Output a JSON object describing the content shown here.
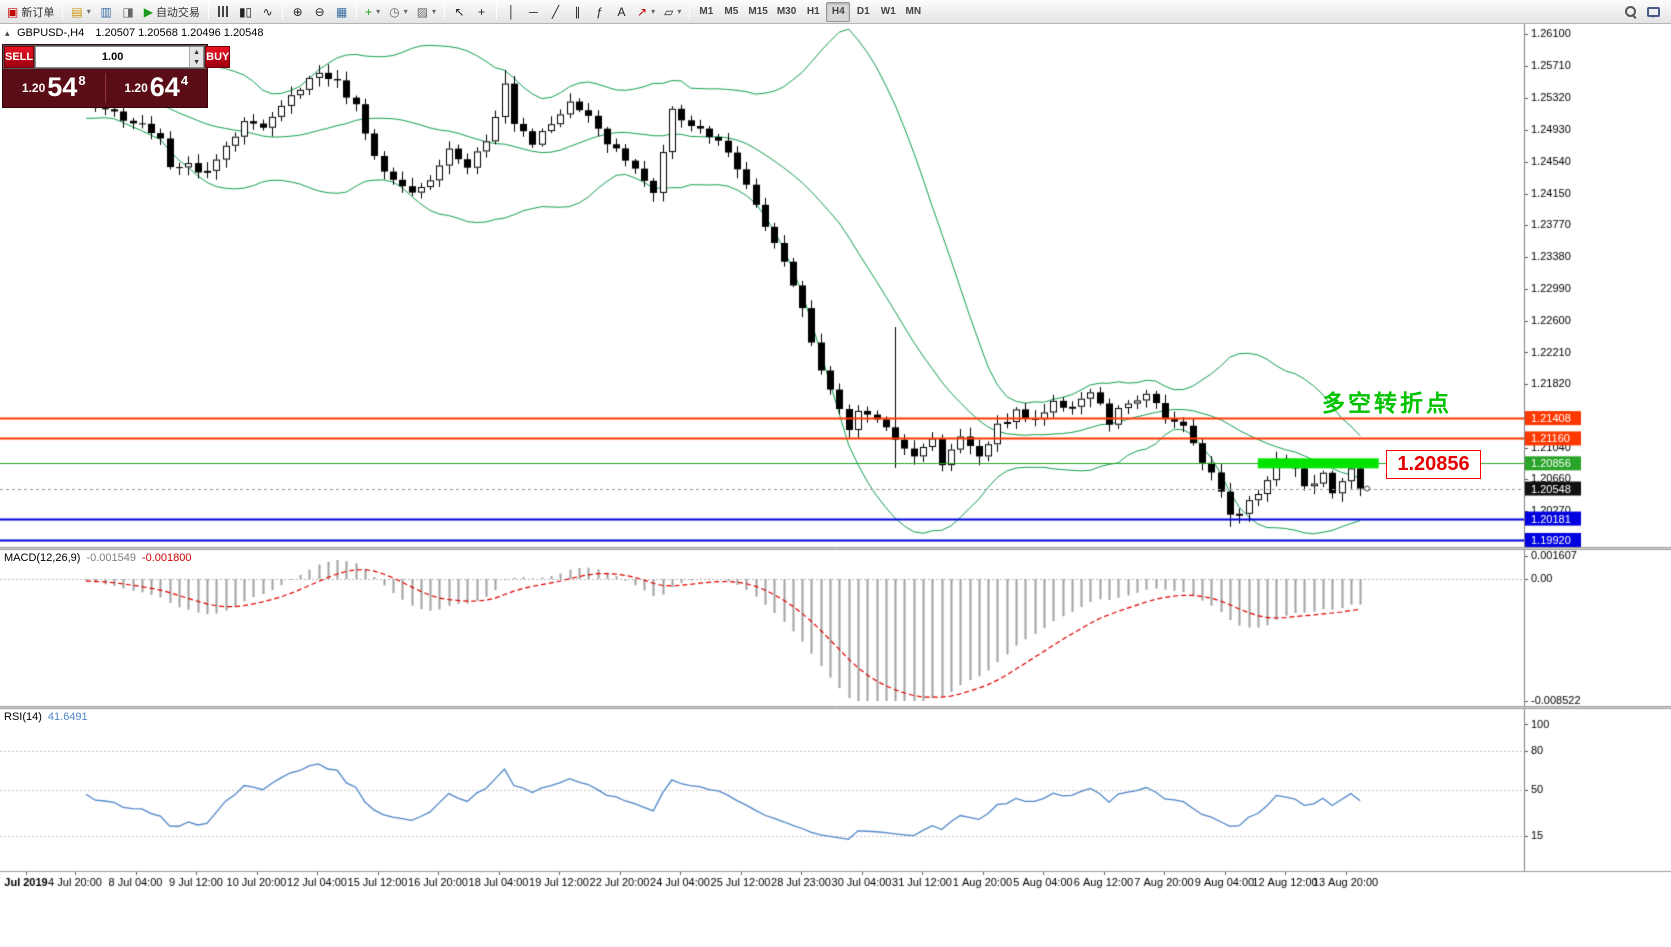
{
  "toolbar": {
    "new_order_label": "新订单",
    "autotrading_label": "自动交易",
    "timeframes": [
      "M1",
      "M5",
      "M15",
      "M30",
      "H1",
      "H4",
      "D1",
      "W1",
      "MN"
    ],
    "active_timeframe": "H4",
    "icons": {
      "one_click_toggle": "▴",
      "spin_up": "▲",
      "spin_down": "▼",
      "new_order": "▣",
      "new_chart": "▤",
      "profiles": "▥",
      "data_window": "◨",
      "autotrading_play": "▶",
      "candle_chart": "▮▯",
      "line_chart": "∿",
      "zoom_in": "⊕",
      "zoom_out": "⊖",
      "tile_windows": "▦",
      "add_indicator": "+",
      "period_clock": "◷",
      "templates": "▨",
      "cursor": "↖",
      "crosshair": "+",
      "vertical_line": "│",
      "horizontal_line": "─",
      "trendline": "╱",
      "channel": "∥",
      "fibonacci": "ƒ",
      "text_tool": "A",
      "arrow_tool": "↗",
      "shapes": "▱",
      "dropdown": "▾"
    }
  },
  "symbol_info": {
    "symbol_period": "GBPUSD-,H4",
    "ohlc": "1.20507 1.20568 1.20496 1.20548"
  },
  "trade_panel": {
    "sell_label": "SELL",
    "buy_label": "BUY",
    "volume": "1.00",
    "sell": {
      "prefix": "1.20",
      "big": "54",
      "sup": "8"
    },
    "buy": {
      "prefix": "1.20",
      "big": "64",
      "sup": "4"
    }
  },
  "annotation": {
    "text": "多空转折点",
    "color": "#00c300"
  },
  "price_label_box": {
    "text": "1.20856",
    "color": "#e60000",
    "border": "#ff0000"
  },
  "chart_data": {
    "type": "candlestick",
    "symbol": "GBPUSD-",
    "period": "H4",
    "current_bar_ohlc": [
      1.20507,
      1.20568,
      1.20496,
      1.20548
    ],
    "current_price": 1.20548,
    "main_scale": {
      "top_price": 1.26222,
      "bottom_price": 1.19834
    },
    "num_candles": 138,
    "warmup_bars": 40,
    "warmup_price": 1.2542,
    "price_anchors": [
      [
        0,
        1.2528
      ],
      [
        3,
        1.2512
      ],
      [
        6,
        1.2498
      ],
      [
        8,
        1.2482
      ],
      [
        9,
        1.2452
      ],
      [
        11,
        1.2448
      ],
      [
        13,
        1.244
      ],
      [
        15,
        1.247
      ],
      [
        17,
        1.2508
      ],
      [
        19,
        1.2495
      ],
      [
        22,
        1.253
      ],
      [
        25,
        1.2562
      ],
      [
        27,
        1.2548
      ],
      [
        29,
        1.252
      ],
      [
        31,
        1.246
      ],
      [
        33,
        1.2428
      ],
      [
        35,
        1.2415
      ],
      [
        37,
        1.2435
      ],
      [
        39,
        1.2465
      ],
      [
        41,
        1.2448
      ],
      [
        43,
        1.2475
      ],
      [
        45,
        1.2552
      ],
      [
        46,
        1.2505
      ],
      [
        48,
        1.2478
      ],
      [
        50,
        1.2495
      ],
      [
        52,
        1.2522
      ],
      [
        54,
        1.2505
      ],
      [
        56,
        1.248
      ],
      [
        58,
        1.2455
      ],
      [
        60,
        1.2432
      ],
      [
        61,
        1.2418
      ],
      [
        63,
        1.2515
      ],
      [
        65,
        1.2498
      ],
      [
        67,
        1.2482
      ],
      [
        69,
        1.2468
      ],
      [
        71,
        1.2425
      ],
      [
        73,
        1.2378
      ],
      [
        75,
        1.233
      ],
      [
        77,
        1.227
      ],
      [
        79,
        1.22
      ],
      [
        81,
        1.215
      ],
      [
        82,
        1.2128
      ],
      [
        83,
        1.2148
      ],
      [
        85,
        1.2138
      ],
      [
        87,
        1.2118
      ],
      [
        89,
        1.2092
      ],
      [
        91,
        1.2112
      ],
      [
        92,
        1.2082
      ],
      [
        94,
        1.2122
      ],
      [
        96,
        1.2098
      ],
      [
        98,
        1.213
      ],
      [
        100,
        1.2152
      ],
      [
        102,
        1.2135
      ],
      [
        104,
        1.2165
      ],
      [
        106,
        1.2152
      ],
      [
        108,
        1.2172
      ],
      [
        110,
        1.2138
      ],
      [
        112,
        1.2158
      ],
      [
        114,
        1.2172
      ],
      [
        116,
        1.2145
      ],
      [
        118,
        1.2128
      ],
      [
        120,
        1.209
      ],
      [
        122,
        1.2048
      ],
      [
        123,
        1.2018
      ],
      [
        125,
        1.2038
      ],
      [
        127,
        1.2062
      ],
      [
        128,
        1.2092
      ],
      [
        130,
        1.2078
      ],
      [
        131,
        1.2058
      ],
      [
        133,
        1.2072
      ],
      [
        134,
        1.2052
      ],
      [
        136,
        1.2076
      ],
      [
        137,
        1.20548
      ]
    ],
    "wick_overrides": [
      {
        "bar": 25,
        "high": 1.2572
      },
      {
        "bar": 45,
        "high": 1.2566
      },
      {
        "bar": 87,
        "high": 1.2252,
        "low": 1.208
      },
      {
        "bar": 123,
        "low": 1.2008
      }
    ],
    "candle_style": {
      "bull_fill": "#ffffff",
      "bear_fill": "#000000",
      "outline": "#000000"
    },
    "bollinger": {
      "period": 20,
      "deviation": 2,
      "color": "#12a050"
    },
    "levels": [
      {
        "price": 1.21408,
        "color": "#ff3800",
        "width": 2
      },
      {
        "price": 1.2116,
        "color": "#ff3800",
        "width": 2
      },
      {
        "price": 1.20856,
        "color": "#28a428",
        "width": 1
      },
      {
        "price": 1.20181,
        "color": "#0000e0",
        "width": 2
      },
      {
        "price": 1.1992,
        "color": "#0000e0",
        "width": 2
      }
    ],
    "highlight": {
      "price": 1.20856,
      "from_bar": 126,
      "to_bar": 139,
      "color": "#00e400"
    },
    "tags": [
      {
        "text": "1.21408",
        "price": 1.21408,
        "color": "#ff3800"
      },
      {
        "text": "1.21160",
        "price": 1.2116,
        "color": "#ff3800"
      },
      {
        "text": "1.20856",
        "price": 1.20856,
        "color": "#28a428"
      },
      {
        "text": "1.20548",
        "price": 1.20548,
        "color": "#111111"
      },
      {
        "text": "1.20181",
        "price": 1.20181,
        "color": "#0000e0"
      },
      {
        "text": "1.19920",
        "price": 1.1992,
        "color": "#0000e0"
      }
    ],
    "y_axis_ticks": [
      1.261,
      1.2571,
      1.2532,
      1.2493,
      1.2454,
      1.2415,
      1.2377,
      1.2338,
      1.2299,
      1.226,
      1.2221,
      1.2182,
      1.2143,
      1.2104,
      1.2066,
      1.2027,
      1.1988
    ],
    "macd": {
      "label": "MACD(12,26,9)",
      "value_text": "-0.001549",
      "signal_text": "-0.001800",
      "scale_max": 0.001607,
      "scale_min": -0.008522,
      "axis_labels": [
        {
          "text": "0.001607",
          "value": 0.001607
        },
        {
          "text": "0.00",
          "value": 0
        },
        {
          "text": "-0.008522",
          "value": -0.008522
        }
      ],
      "histogram_color": "#a0a0a0",
      "signal_color": "#e00000"
    },
    "rsi": {
      "label": "RSI(14)",
      "value_text": "41.6491",
      "line_color": "#4f86c8",
      "scale_vmax": 108,
      "scale_vmin": -8,
      "levels": [
        80,
        50,
        15
      ],
      "axis_labels": [
        {
          "text": "100",
          "value": 100
        },
        {
          "text": "80",
          "value": 80
        },
        {
          "text": "50",
          "value": 50
        },
        {
          "text": "15",
          "value": 15
        }
      ]
    },
    "time_labels": [
      "Jul 2019",
      "4 Jul 20:00",
      "8 Jul 04:00",
      "9 Jul 12:00",
      "10 Jul 20:00",
      "12 Jul 04:00",
      "15 Jul 12:00",
      "16 Jul 20:00",
      "18 Jul 04:00",
      "19 Jul 12:00",
      "22 Jul 20:00",
      "24 Jul 04:00",
      "25 Jul 12:00",
      "28 Jul 23:00",
      "30 Jul 04:00",
      "31 Jul 12:00",
      "1 Aug 20:00",
      "5 Aug 04:00",
      "6 Aug 12:00",
      "7 Aug 20:00",
      "9 Aug 04:00",
      "12 Aug 12:00",
      "13 Aug 20:00"
    ]
  }
}
